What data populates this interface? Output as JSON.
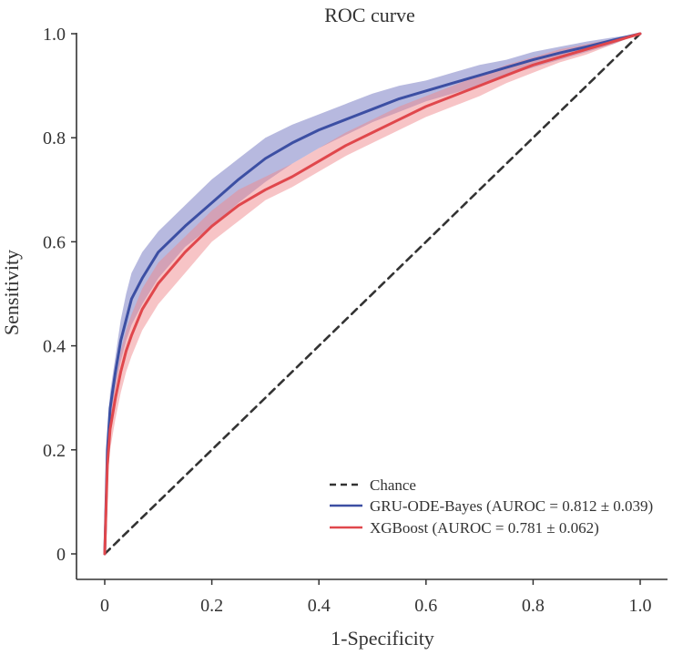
{
  "chart_data": {
    "type": "line",
    "title": "ROC curve",
    "xlabel": "1-Specificity",
    "ylabel": "Sensitivity",
    "xlim": [
      0,
      1.0
    ],
    "ylim": [
      0,
      1.0
    ],
    "x_ticks": [
      0,
      0.2,
      0.4,
      0.6,
      0.8,
      1.0
    ],
    "x_tick_labels": [
      "0",
      "0.2",
      "0.4",
      "0.6",
      "0.8",
      "1.0"
    ],
    "y_ticks": [
      0,
      0.2,
      0.4,
      0.6,
      0.8,
      1.0
    ],
    "y_tick_labels": [
      "0",
      "0.2",
      "0.4",
      "0.6",
      "0.8",
      "1.0"
    ],
    "legend_position": "bottom-right",
    "series": [
      {
        "name": "Chance",
        "legend_label": "Chance",
        "color": "#333333",
        "style": "dashed",
        "x": [
          0,
          1.0
        ],
        "y": [
          0,
          1.0
        ]
      },
      {
        "name": "GRU-ODE-Bayes",
        "legend_label": "GRU-ODE-Bayes (AUROC = 0.812 ± 0.039)",
        "color": "#3c4fa3",
        "band_color": "#6f73c0",
        "style": "solid",
        "x": [
          0,
          0.005,
          0.01,
          0.02,
          0.03,
          0.04,
          0.05,
          0.07,
          0.1,
          0.15,
          0.2,
          0.25,
          0.3,
          0.35,
          0.4,
          0.45,
          0.5,
          0.55,
          0.6,
          0.65,
          0.7,
          0.75,
          0.8,
          0.85,
          0.9,
          0.95,
          1.0
        ],
        "y": [
          0,
          0.2,
          0.28,
          0.35,
          0.41,
          0.45,
          0.49,
          0.53,
          0.58,
          0.63,
          0.675,
          0.72,
          0.76,
          0.79,
          0.815,
          0.835,
          0.855,
          0.875,
          0.89,
          0.905,
          0.92,
          0.935,
          0.95,
          0.963,
          0.975,
          0.988,
          1.0
        ],
        "lower": [
          0,
          0.17,
          0.25,
          0.32,
          0.37,
          0.41,
          0.44,
          0.48,
          0.53,
          0.59,
          0.63,
          0.675,
          0.715,
          0.75,
          0.78,
          0.805,
          0.83,
          0.85,
          0.87,
          0.885,
          0.9,
          0.92,
          0.935,
          0.95,
          0.965,
          0.98,
          1.0
        ],
        "upper": [
          0,
          0.23,
          0.31,
          0.38,
          0.45,
          0.5,
          0.54,
          0.58,
          0.62,
          0.67,
          0.72,
          0.76,
          0.8,
          0.825,
          0.845,
          0.865,
          0.885,
          0.9,
          0.91,
          0.925,
          0.94,
          0.95,
          0.965,
          0.975,
          0.985,
          0.993,
          1.0
        ]
      },
      {
        "name": "XGBoost",
        "legend_label": "XGBoost (AUROC = 0.781 ± 0.062)",
        "color": "#e0474c",
        "band_color": "#f08a8d",
        "style": "solid",
        "x": [
          0,
          0.005,
          0.01,
          0.02,
          0.03,
          0.04,
          0.05,
          0.07,
          0.1,
          0.15,
          0.2,
          0.25,
          0.3,
          0.35,
          0.4,
          0.45,
          0.5,
          0.55,
          0.6,
          0.65,
          0.7,
          0.75,
          0.8,
          0.85,
          0.9,
          0.95,
          1.0
        ],
        "y": [
          0,
          0.17,
          0.24,
          0.3,
          0.35,
          0.39,
          0.42,
          0.47,
          0.52,
          0.58,
          0.63,
          0.67,
          0.7,
          0.725,
          0.755,
          0.785,
          0.81,
          0.835,
          0.86,
          0.88,
          0.9,
          0.92,
          0.94,
          0.955,
          0.97,
          0.985,
          1.0
        ],
        "lower": [
          0,
          0.14,
          0.2,
          0.26,
          0.31,
          0.35,
          0.38,
          0.43,
          0.48,
          0.54,
          0.6,
          0.64,
          0.68,
          0.705,
          0.735,
          0.765,
          0.79,
          0.815,
          0.84,
          0.86,
          0.88,
          0.905,
          0.925,
          0.945,
          0.96,
          0.98,
          1.0
        ],
        "upper": [
          0,
          0.2,
          0.27,
          0.33,
          0.39,
          0.43,
          0.46,
          0.51,
          0.56,
          0.61,
          0.66,
          0.7,
          0.725,
          0.75,
          0.78,
          0.81,
          0.835,
          0.86,
          0.88,
          0.9,
          0.92,
          0.94,
          0.955,
          0.97,
          0.98,
          0.99,
          1.0
        ]
      }
    ]
  }
}
